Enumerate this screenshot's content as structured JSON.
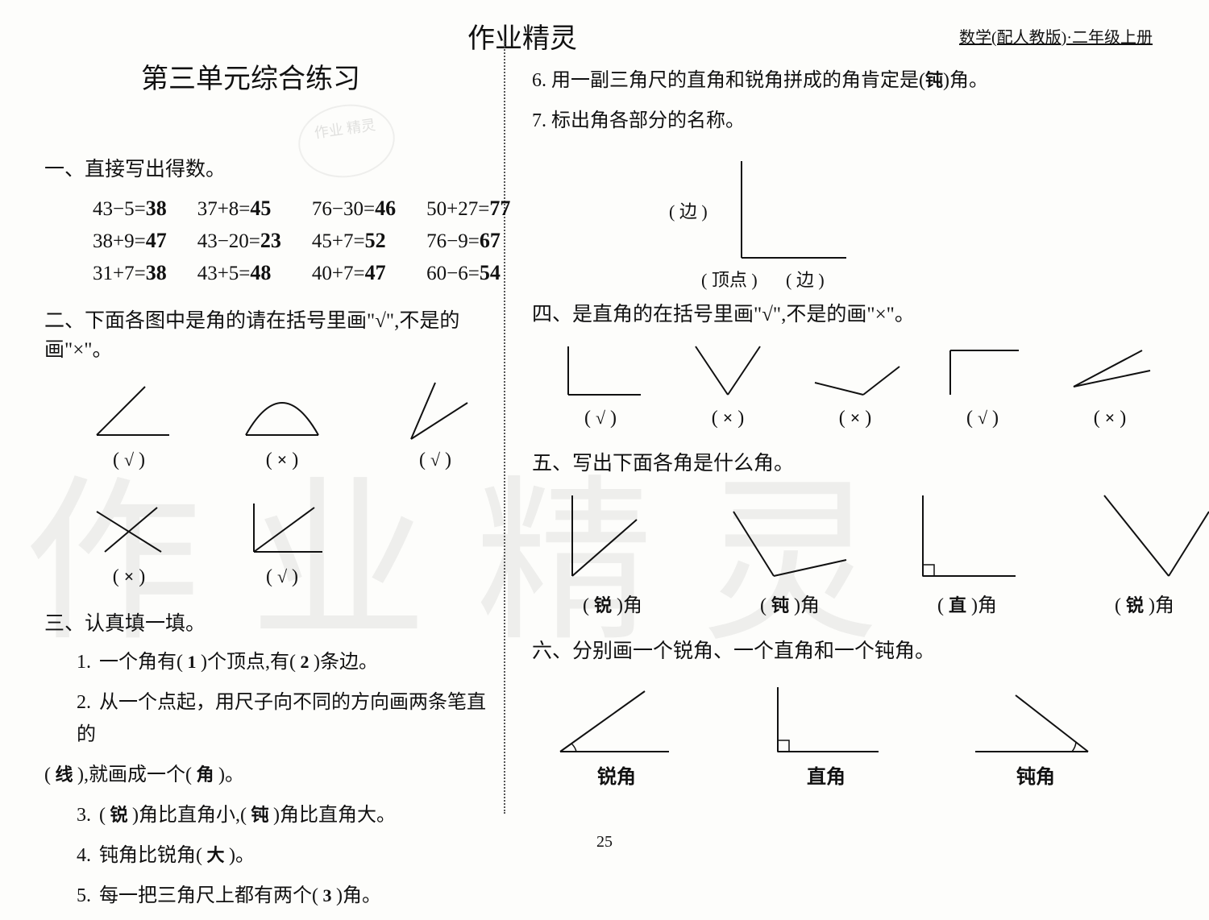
{
  "header": {
    "brand": "作业精灵",
    "right": "数学(配人教版)·二年级上册",
    "title": "第三单元综合练习",
    "page_number": "25"
  },
  "watermark": "作业精灵",
  "stamp": "作业\n精灵",
  "sec1": {
    "head": "一、直接写出得数。",
    "rows": [
      [
        {
          "q": "43−5=",
          "a": "38"
        },
        {
          "q": "37+8=",
          "a": "45"
        },
        {
          "q": "76−30=",
          "a": "46"
        },
        {
          "q": "50+27=",
          "a": "77"
        }
      ],
      [
        {
          "q": "38+9=",
          "a": "47"
        },
        {
          "q": "43−20=",
          "a": "23"
        },
        {
          "q": "45+7=",
          "a": "52"
        },
        {
          "q": "76−9=",
          "a": "67"
        }
      ],
      [
        {
          "q": "31+7=",
          "a": "38"
        },
        {
          "q": "43+5=",
          "a": "48"
        },
        {
          "q": "40+7=",
          "a": "47"
        },
        {
          "q": "60−6=",
          "a": "54"
        }
      ]
    ]
  },
  "sec2": {
    "head": "二、下面各图中是角的请在括号里画\"√\",不是的画\"×\"。",
    "row1": [
      {
        "svg_type": "acute_up",
        "mark": "√"
      },
      {
        "svg_type": "arc",
        "mark": "×"
      },
      {
        "svg_type": "acute_narrow",
        "mark": "√"
      }
    ],
    "row2": [
      {
        "svg_type": "cross_lines",
        "mark": "×"
      },
      {
        "svg_type": "right_down",
        "mark": "√"
      }
    ]
  },
  "sec3": {
    "head": "三、认真填一填。",
    "items": [
      {
        "n": "1.",
        "pre": "一个角有(",
        "a1": "1",
        "mid": ")个顶点,有(",
        "a2": "2",
        "post": ")条边。"
      },
      {
        "n": "2.",
        "pre": "从一个点起，用尺子向不同的方向画两条笔直的",
        "line2_pre": "(",
        "a1": "线",
        "line2_mid": "),就画成一个(",
        "a2": "角",
        "line2_post": ")。"
      },
      {
        "n": "3.",
        "pre": "(",
        "a1": "锐",
        "mid": ")角比直角小,(",
        "a2": "钝",
        "post": ")角比直角大。"
      },
      {
        "n": "4.",
        "pre": "钝角比锐角(",
        "a1": "大",
        "post": ")。"
      },
      {
        "n": "5.",
        "pre": "每一把三角尺上都有两个(",
        "a1": "3",
        "post": ")角。"
      }
    ]
  },
  "sec_r6": {
    "text": "6. 用一副三角尺的直角和锐角拼成的角肯定是(",
    "ans": "钝",
    "post": ")角。"
  },
  "sec_r7": {
    "text": "7. 标出角各部分的名称。",
    "labels": {
      "side1": "(  边  )",
      "vertex": "( 顶点 )",
      "side2": "(  边  )"
    }
  },
  "sec4": {
    "head": "四、是直角的在括号里画\"√\",不是的画\"×\"。",
    "cells": [
      {
        "svg_type": "right",
        "mark": "√"
      },
      {
        "svg_type": "v_acute",
        "mark": "×"
      },
      {
        "svg_type": "obtuse_flat",
        "mark": "×"
      },
      {
        "svg_type": "right_tilt",
        "mark": "√"
      },
      {
        "svg_type": "acute_small",
        "mark": "×"
      }
    ]
  },
  "sec5": {
    "head": "五、写出下面各角是什么角。",
    "cells": [
      {
        "svg_type": "acute_tall",
        "ans": "锐"
      },
      {
        "svg_type": "obtuse_wide",
        "ans": "钝"
      },
      {
        "svg_type": "right_box",
        "ans": "直"
      },
      {
        "svg_type": "acute_lean",
        "ans": "锐"
      }
    ]
  },
  "sec6": {
    "head": "六、分别画一个锐角、一个直角和一个钝角。",
    "cells": [
      {
        "svg_type": "draw_acute",
        "label": "锐角"
      },
      {
        "svg_type": "draw_right",
        "label": "直角"
      },
      {
        "svg_type": "draw_obtuse",
        "label": "钝角"
      }
    ]
  },
  "style": {
    "ink": "#111",
    "hand": "#222",
    "stroke_w": 2
  }
}
